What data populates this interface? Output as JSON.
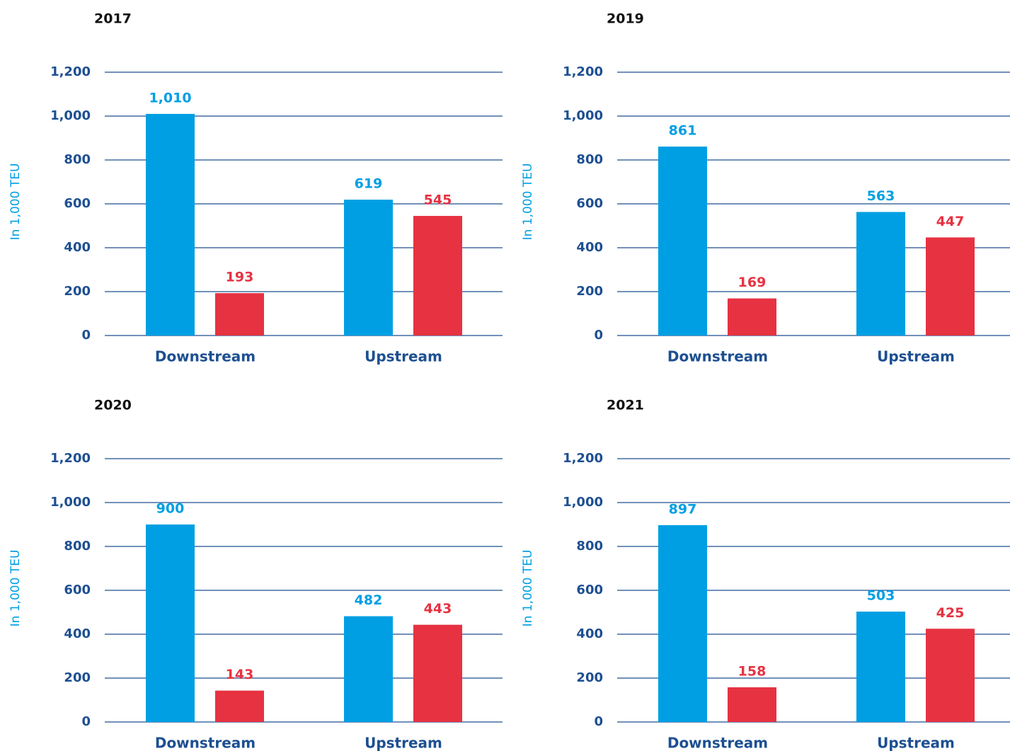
{
  "chart_data": [
    {
      "type": "bar",
      "title": "2017",
      "y_label": "In 1,000 TEU",
      "categories": [
        "Downstream",
        "Upstream"
      ],
      "series": [
        {
          "color": "#009fe3",
          "values": [
            1010,
            619
          ],
          "value_labels": [
            "1,010",
            "619"
          ]
        },
        {
          "color": "#e63241",
          "values": [
            193,
            545
          ],
          "value_labels": [
            "193",
            "545"
          ]
        }
      ],
      "ylim": [
        0,
        1200
      ],
      "yticks": [
        0,
        200,
        400,
        600,
        800,
        {
          "value": 1000,
          "label": "1,000"
        },
        {
          "value": 1200,
          "label": "1,200"
        }
      ],
      "grid": true
    },
    {
      "type": "bar",
      "title": "2019",
      "y_label": "In 1,000 TEU",
      "categories": [
        "Downstream",
        "Upstream"
      ],
      "series": [
        {
          "color": "#009fe3",
          "values": [
            861,
            563
          ],
          "value_labels": [
            "861",
            "563"
          ]
        },
        {
          "color": "#e63241",
          "values": [
            169,
            447
          ],
          "value_labels": [
            "169",
            "447"
          ]
        }
      ],
      "ylim": [
        0,
        1200
      ],
      "yticks": [
        0,
        200,
        400,
        600,
        800,
        {
          "value": 1000,
          "label": "1,000"
        },
        {
          "value": 1200,
          "label": "1,200"
        }
      ],
      "grid": true
    },
    {
      "type": "bar",
      "title": "2020",
      "y_label": "In 1,000 TEU",
      "categories": [
        "Downstream",
        "Upstream"
      ],
      "series": [
        {
          "color": "#009fe3",
          "values": [
            900,
            482
          ],
          "value_labels": [
            "900",
            "482"
          ]
        },
        {
          "color": "#e63241",
          "values": [
            143,
            443
          ],
          "value_labels": [
            "143",
            "443"
          ]
        }
      ],
      "ylim": [
        0,
        1200
      ],
      "yticks": [
        0,
        200,
        400,
        600,
        800,
        {
          "value": 1000,
          "label": "1,000"
        },
        {
          "value": 1200,
          "label": "1,200"
        }
      ],
      "grid": true
    },
    {
      "type": "bar",
      "title": "2021",
      "y_label": "In 1,000 TEU",
      "categories": [
        "Downstream",
        "Upstream"
      ],
      "series": [
        {
          "color": "#009fe3",
          "values": [
            897,
            503
          ],
          "value_labels": [
            "897",
            "503"
          ]
        },
        {
          "color": "#e63241",
          "values": [
            158,
            425
          ],
          "value_labels": [
            "158",
            "425"
          ]
        }
      ],
      "ylim": [
        0,
        1200
      ],
      "yticks": [
        0,
        200,
        400,
        600,
        800,
        {
          "value": 1000,
          "label": "1,000"
        },
        {
          "value": 1200,
          "label": "1,200"
        }
      ],
      "grid": true
    }
  ]
}
